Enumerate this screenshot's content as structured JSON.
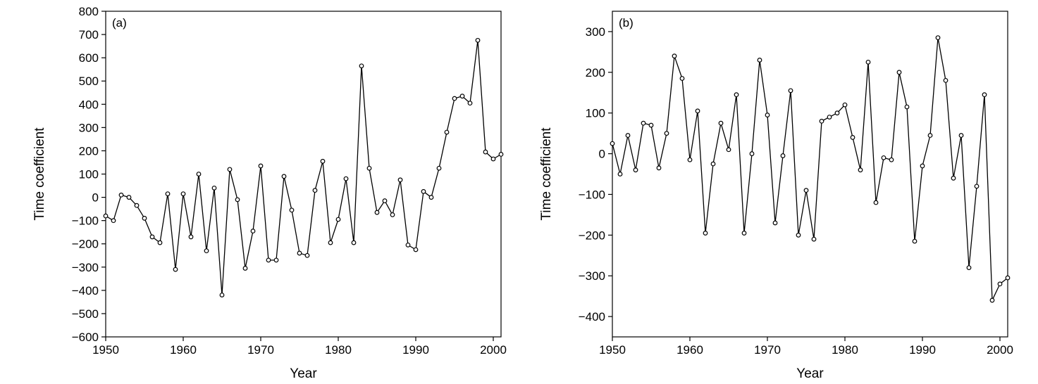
{
  "chart_data": [
    {
      "type": "line",
      "panel_label": "(a)",
      "xlabel": "Year",
      "ylabel": "Time coefficient",
      "xlim": [
        1950,
        2001
      ],
      "ylim": [
        -600,
        800
      ],
      "xticks": [
        1950,
        1960,
        1970,
        1980,
        1990,
        2000
      ],
      "yticks": [
        -600,
        -500,
        -400,
        -300,
        -200,
        -100,
        0,
        100,
        200,
        300,
        400,
        500,
        600,
        700,
        800
      ],
      "ytick_labels": [
        "−600",
        "−500",
        "−400",
        "−300",
        "−200",
        "−100",
        "0",
        "100",
        "200",
        "300",
        "400",
        "500",
        "600",
        "700",
        "800"
      ],
      "grid": false,
      "marker": "open-circle",
      "series": [
        {
          "x": [
            1950,
            1951,
            1952,
            1953,
            1954,
            1955,
            1956,
            1957,
            1958,
            1959,
            1960,
            1961,
            1962,
            1963,
            1964,
            1965,
            1966,
            1967,
            1968,
            1969,
            1970,
            1971,
            1972,
            1973,
            1974,
            1975,
            1976,
            1977,
            1978,
            1979,
            1980,
            1981,
            1982,
            1983,
            1984,
            1985,
            1986,
            1987,
            1988,
            1989,
            1990,
            1991,
            1992,
            1993,
            1994,
            1995,
            1996,
            1997,
            1998,
            1999,
            2000,
            2001
          ],
          "values": [
            -80,
            -100,
            10,
            0,
            -35,
            -90,
            -170,
            -195,
            15,
            -310,
            15,
            -170,
            100,
            -230,
            40,
            -420,
            120,
            -10,
            -305,
            -145,
            135,
            -270,
            -270,
            90,
            -55,
            -240,
            -250,
            30,
            155,
            -195,
            -95,
            80,
            -195,
            565,
            125,
            -65,
            -15,
            -75,
            75,
            -205,
            -225,
            25,
            0,
            125,
            280,
            425,
            435,
            405,
            675,
            195,
            165,
            185
          ]
        }
      ]
    },
    {
      "type": "line",
      "panel_label": "(b)",
      "xlabel": "Year",
      "ylabel": "Time coefficient",
      "xlim": [
        1950,
        2001
      ],
      "ylim": [
        -450,
        350
      ],
      "xticks": [
        1950,
        1960,
        1970,
        1980,
        1990,
        2000
      ],
      "yticks": [
        -400,
        -300,
        -200,
        -100,
        0,
        100,
        200,
        300
      ],
      "ytick_labels": [
        "−400",
        "−300",
        "−200",
        "−100",
        "0",
        "100",
        "200",
        "300"
      ],
      "grid": false,
      "marker": "open-circle",
      "series": [
        {
          "x": [
            1950,
            1951,
            1952,
            1953,
            1954,
            1955,
            1956,
            1957,
            1958,
            1959,
            1960,
            1961,
            1962,
            1963,
            1964,
            1965,
            1966,
            1967,
            1968,
            1969,
            1970,
            1971,
            1972,
            1973,
            1974,
            1975,
            1976,
            1977,
            1978,
            1979,
            1980,
            1981,
            1982,
            1983,
            1984,
            1985,
            1986,
            1987,
            1988,
            1989,
            1990,
            1991,
            1992,
            1993,
            1994,
            1995,
            1996,
            1997,
            1998,
            1999,
            2000,
            2001
          ],
          "values": [
            25,
            -50,
            45,
            -40,
            75,
            70,
            -35,
            50,
            240,
            185,
            -15,
            105,
            -195,
            -25,
            75,
            10,
            145,
            -195,
            0,
            230,
            95,
            -170,
            -5,
            155,
            -200,
            -90,
            -210,
            80,
            90,
            100,
            120,
            40,
            -40,
            225,
            -120,
            -10,
            -15,
            200,
            115,
            -215,
            -30,
            45,
            285,
            180,
            -60,
            45,
            -280,
            -80,
            145,
            -360,
            -320,
            -305
          ]
        }
      ]
    }
  ]
}
